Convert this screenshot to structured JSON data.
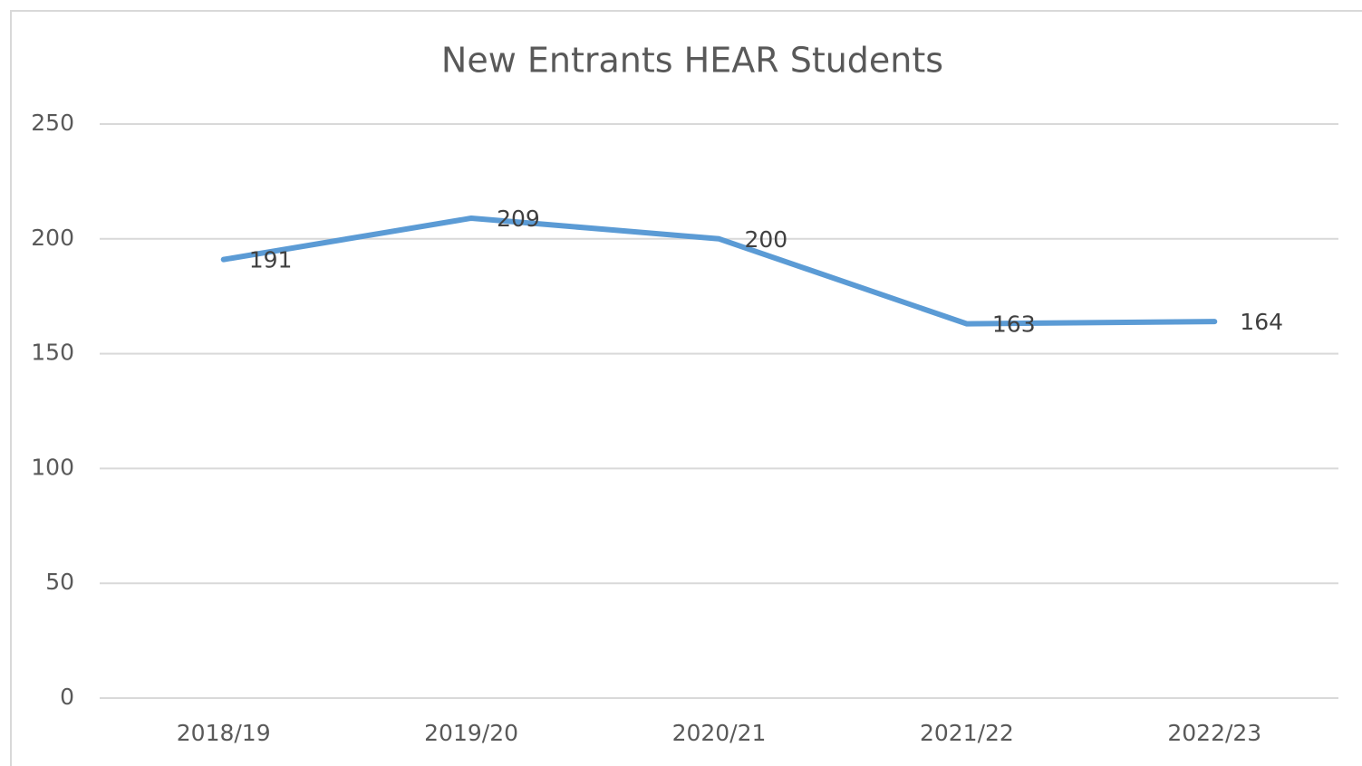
{
  "chart_data": {
    "type": "line",
    "title": "New Entrants HEAR Students",
    "categories": [
      "2018/19",
      "2019/20",
      "2020/21",
      "2021/22",
      "2022/23"
    ],
    "values": [
      191,
      209,
      200,
      163,
      164
    ],
    "color": "#5b9bd5",
    "ylim": [
      0,
      250
    ],
    "yticks": [
      0,
      50,
      100,
      150,
      200,
      250
    ],
    "grid": true
  }
}
